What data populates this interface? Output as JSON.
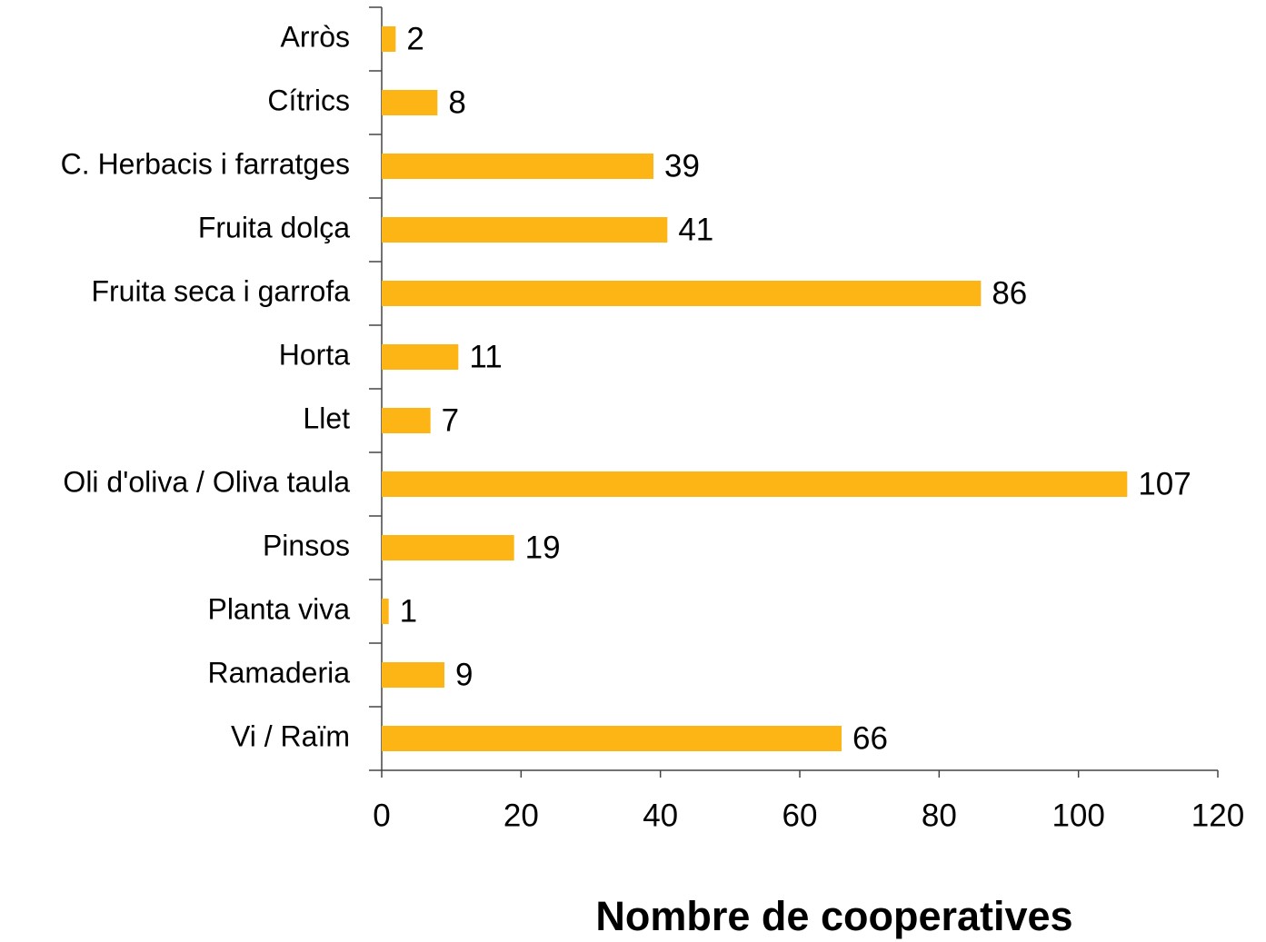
{
  "chart_data": {
    "type": "bar",
    "x_label": "Nombre de cooperatives",
    "categories": [
      "Arròs",
      "Cítrics",
      "C. Herbacis i farratges",
      "Fruita dolça",
      "Fruita seca i garrofa",
      "Horta",
      "Llet",
      "Oli d'oliva / Oliva taula",
      "Pinsos",
      "Planta viva",
      "Ramaderia",
      "Vi / Raïm"
    ],
    "values": [
      2,
      8,
      39,
      41,
      86,
      11,
      7,
      107,
      19,
      1,
      9,
      66
    ],
    "color": "#fdb515",
    "xlim": [
      0,
      120
    ],
    "xticks": [
      0,
      20,
      40,
      60,
      80,
      100,
      120
    ],
    "grid": false
  }
}
